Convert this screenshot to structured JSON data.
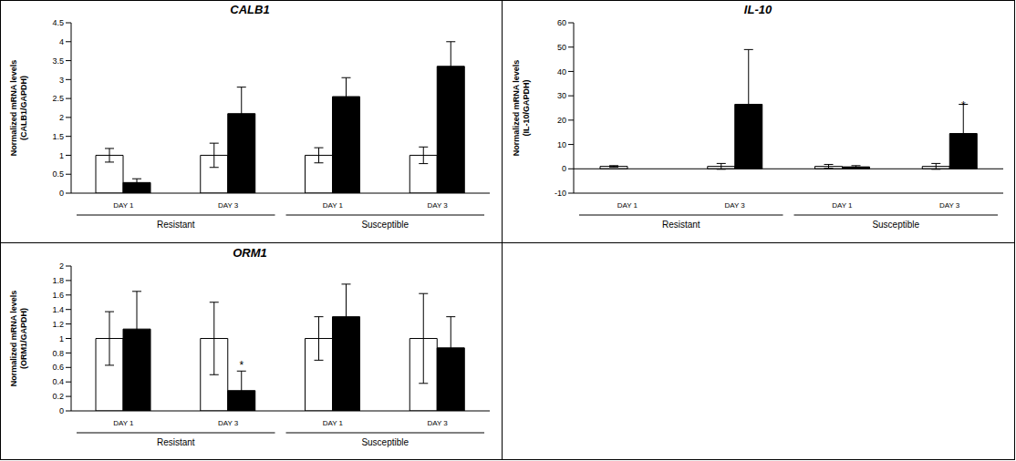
{
  "chart_data": [
    {
      "type": "bar",
      "title": "CALB1",
      "y_label": "Normalized mRNA levels\n(CALB1/GAPDH)",
      "categories": [
        "DAY 1",
        "DAY 3",
        "DAY 1",
        "DAY 3"
      ],
      "groups": [
        "Resistant",
        "Resistant",
        "Susceptible",
        "Susceptible"
      ],
      "series": [
        {
          "color": "#ffffff",
          "values": [
            1,
            1,
            1,
            1
          ],
          "errors": [
            0.18,
            0.32,
            0.2,
            0.22
          ],
          "annotations": [
            null,
            null,
            null,
            null
          ]
        },
        {
          "color": "#000000",
          "values": [
            0.28,
            2.1,
            2.55,
            3.35
          ],
          "errors": [
            0.1,
            0.7,
            0.5,
            0.65
          ],
          "annotations": [
            null,
            null,
            null,
            null
          ]
        }
      ],
      "ylim": [
        0,
        4.5
      ],
      "yticks": [
        0,
        0.5,
        1,
        1.5,
        2,
        2.5,
        3,
        3.5,
        4,
        4.5
      ]
    },
    {
      "type": "bar",
      "title": "IL-10",
      "y_label": "Normalized mRNA levels\n(IL-10/GAPDH)",
      "categories": [
        "DAY 1",
        "DAY 3",
        "DAY 1",
        "DAY 3"
      ],
      "groups": [
        "Resistant",
        "Resistant",
        "Susceptible",
        "Susceptible"
      ],
      "series": [
        {
          "color": "#ffffff",
          "values": [
            1,
            1,
            1,
            1
          ],
          "errors": [
            0.3,
            1.2,
            0.8,
            1.2
          ],
          "annotations": [
            null,
            null,
            null,
            null
          ]
        },
        {
          "color": "#000000",
          "values": [
            0,
            26.5,
            0.8,
            14.5
          ],
          "errors": [
            0,
            22.5,
            0.5,
            12
          ],
          "annotations": [
            null,
            null,
            null,
            "*"
          ]
        }
      ],
      "ylim": [
        -10,
        60
      ],
      "yticks": [
        -10,
        0,
        10,
        20,
        30,
        40,
        50,
        60
      ]
    },
    {
      "type": "bar",
      "title": "ORM1",
      "y_label": "Normalized mRNA levels\n(ORM1/GAPDH)",
      "categories": [
        "DAY 1",
        "DAY 3",
        "DAY 1",
        "DAY 3"
      ],
      "groups": [
        "Resistant",
        "Resistant",
        "Susceptible",
        "Susceptible"
      ],
      "series": [
        {
          "color": "#ffffff",
          "values": [
            1,
            1,
            1,
            1
          ],
          "errors": [
            0.37,
            0.5,
            0.3,
            0.62
          ],
          "annotations": [
            null,
            null,
            null,
            null
          ]
        },
        {
          "color": "#000000",
          "values": [
            1.13,
            0.28,
            1.3,
            0.87
          ],
          "errors": [
            0.52,
            0.27,
            0.45,
            0.43
          ],
          "annotations": [
            null,
            "*",
            null,
            null
          ]
        }
      ],
      "ylim": [
        0,
        2
      ],
      "yticks": [
        0,
        0.2,
        0.4,
        0.6,
        0.8,
        1,
        1.2,
        1.4,
        1.6,
        1.8,
        2
      ]
    }
  ]
}
